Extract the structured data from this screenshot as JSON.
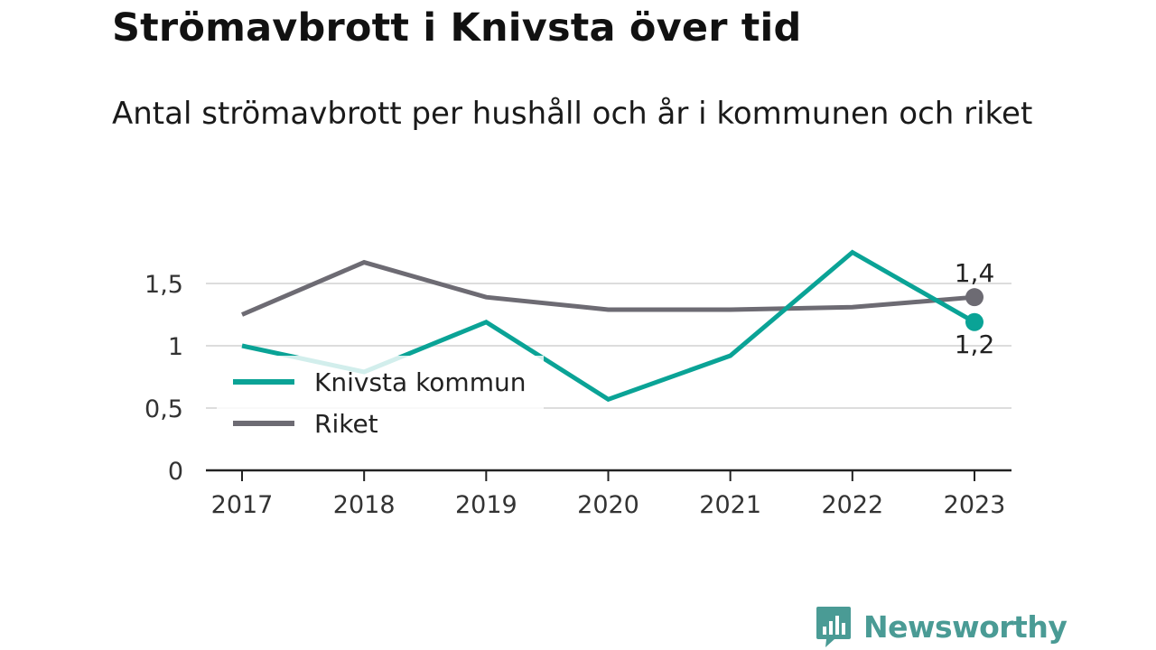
{
  "title": "Strömavbrott i Knivsta över tid",
  "subtitle": "Antal strömavbrott per hushåll och år i kommunen och riket",
  "brand": {
    "name": "Newsworthy",
    "color": "#4a9b95",
    "icon": "bar-chart-speech-icon"
  },
  "colors": {
    "knivsta": "#0aa396",
    "riket": "#6d6b73",
    "grid": "#dddddd",
    "axis": "#222222"
  },
  "chart_data": {
    "type": "line",
    "x": [
      "2017",
      "2018",
      "2019",
      "2020",
      "2021",
      "2022",
      "2023"
    ],
    "yticks": [
      {
        "value": 0,
        "label": "0"
      },
      {
        "value": 0.5,
        "label": "0,5"
      },
      {
        "value": 1,
        "label": "1"
      },
      {
        "value": 1.5,
        "label": "1,5"
      }
    ],
    "ylim": [
      0,
      1.75
    ],
    "grid": true,
    "legend_position": "bottom-left",
    "series": [
      {
        "name": "Knivsta kommun",
        "color": "#0aa396",
        "values": [
          1.0,
          0.79,
          1.19,
          0.57,
          0.92,
          1.75,
          1.19
        ],
        "end_label": "1,2"
      },
      {
        "name": "Riket",
        "color": "#6d6b73",
        "values": [
          1.25,
          1.67,
          1.39,
          1.29,
          1.29,
          1.31,
          1.39
        ],
        "end_label": "1,4"
      }
    ]
  }
}
